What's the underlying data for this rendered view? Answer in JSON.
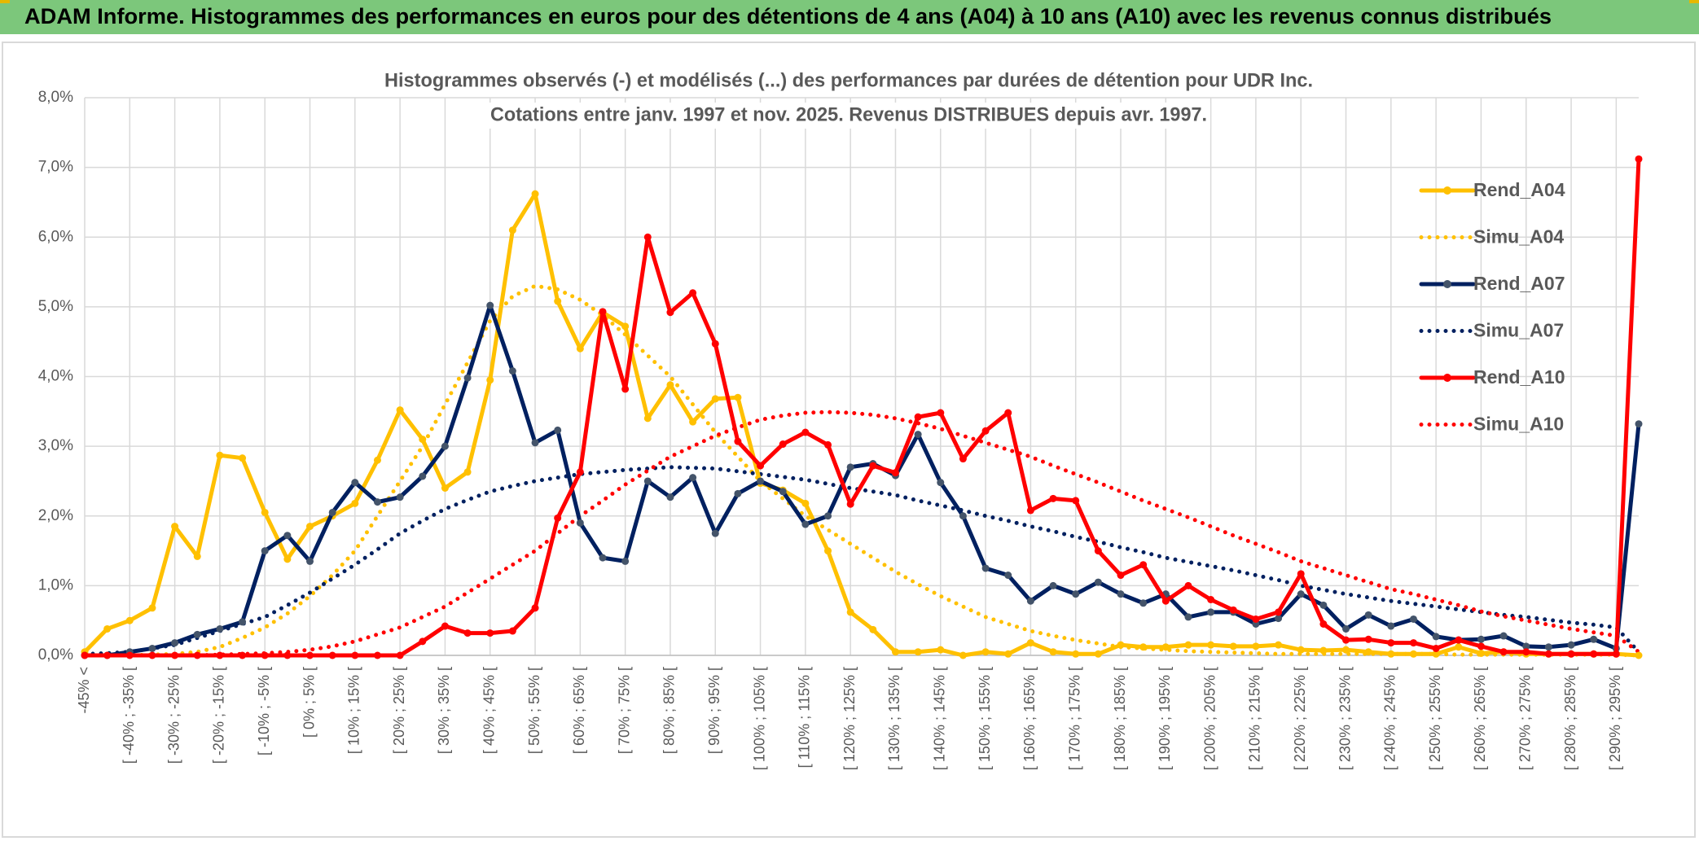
{
  "header": {
    "title": "ADAM Informe. Histogrammes des performances en euros pour des détentions de 4 ans (A04) à 10 ans (A10) avec les revenus connus distribués"
  },
  "chart_data": {
    "type": "line",
    "title": [
      "Histogrammes observés (-) et modélisés (...) des performances par durées de détention pour UDR Inc.",
      "Cotations entre janv. 1997 et nov. 2025. Revenus DISTRIBUES depuis avr. 1997."
    ],
    "categories": [
      "-45% <",
      null,
      "[ -40% ; -35% [",
      null,
      "[ -30% ; -25% [",
      null,
      "[ -20% ; -15% [",
      null,
      "[ -10% ; -5% [",
      null,
      "[ 0% ; 5% [",
      null,
      "[ 10% ; 15% [",
      null,
      "[ 20% ; 25% [",
      null,
      "[ 30% ; 35% [",
      null,
      "[ 40% ; 45% [",
      null,
      "[ 50% ; 55% [",
      null,
      "[ 60% ; 65% [",
      null,
      "[ 70% ; 75% [",
      null,
      "[ 80% ; 85% [",
      null,
      "[ 90% ; 95% [",
      null,
      "[ 100% ; 105% [",
      null,
      "[ 110% ; 115% [",
      null,
      "[ 120% ; 125% [",
      null,
      "[ 130% ; 135% [",
      null,
      "[ 140% ; 145% [",
      null,
      "[ 150% ; 155% [",
      null,
      "[ 160% ; 165% [",
      null,
      "[ 170% ; 175% [",
      null,
      "[ 180% ; 185% [",
      null,
      "[ 190% ; 195% [",
      null,
      "[ 200% ; 205% [",
      null,
      "[ 210% ; 215% [",
      null,
      "[ 220% ; 225% [",
      null,
      "[ 230% ; 235% [",
      null,
      "[ 240% ; 245% [",
      null,
      "[ 250% ; 255% [",
      null,
      "[ 260% ; 265% [",
      null,
      "[ 270% ; 275% [",
      null,
      "[ 280% ; 285% [",
      null,
      "[ 290% ; 295% [",
      null
    ],
    "series": [
      {
        "name": "Rend_A04",
        "color": "#ffc000",
        "style": "solid",
        "markers": true,
        "values": [
          0.05,
          0.38,
          0.5,
          0.68,
          1.85,
          1.42,
          2.87,
          2.83,
          2.05,
          1.38,
          1.85,
          2.0,
          2.18,
          2.8,
          3.52,
          3.1,
          2.4,
          2.63,
          3.95,
          6.1,
          6.62,
          5.08,
          4.4,
          4.92,
          4.72,
          3.4,
          3.88,
          3.35,
          3.68,
          3.7,
          2.47,
          2.37,
          2.18,
          1.5,
          0.62,
          0.37,
          0.05,
          0.05,
          0.08,
          0.0,
          0.05,
          0.02,
          0.18,
          0.05,
          0.02,
          0.02,
          0.15,
          0.12,
          0.12,
          0.15,
          0.15,
          0.13,
          0.13,
          0.15,
          0.08,
          0.07,
          0.08,
          0.05,
          0.02,
          0.02,
          0.02,
          0.12,
          0.03,
          0.05,
          0.02,
          0.02,
          0.02,
          0.02,
          0.02,
          0.0
        ]
      },
      {
        "name": "Simu_A04",
        "color": "#ffc000",
        "style": "dotted",
        "markers": false,
        "values": [
          0.0,
          0.0,
          0.0,
          0.01,
          0.02,
          0.05,
          0.12,
          0.25,
          0.4,
          0.6,
          0.85,
          1.15,
          1.5,
          2.0,
          2.5,
          3.0,
          3.6,
          4.2,
          4.8,
          5.15,
          5.3,
          5.25,
          5.1,
          4.88,
          4.6,
          4.3,
          4.0,
          3.6,
          3.2,
          2.85,
          2.5,
          2.25,
          2.0,
          1.8,
          1.6,
          1.4,
          1.2,
          1.02,
          0.85,
          0.7,
          0.55,
          0.45,
          0.35,
          0.28,
          0.22,
          0.17,
          0.12,
          0.1,
          0.08,
          0.06,
          0.05,
          0.04,
          0.03,
          0.02,
          0.02,
          0.02,
          0.02,
          0.02,
          0.02,
          0.02,
          0.02,
          0.01,
          0.01,
          0.01,
          0.01,
          0.01,
          0.01,
          0.01,
          0.01,
          0.0
        ]
      },
      {
        "name": "Rend_A07",
        "color": "#002060",
        "marker_color": "#44546a",
        "style": "solid",
        "markers": true,
        "values": [
          0.0,
          0.0,
          0.05,
          0.1,
          0.18,
          0.3,
          0.38,
          0.48,
          1.5,
          1.72,
          1.35,
          2.05,
          2.48,
          2.2,
          2.27,
          2.57,
          3.0,
          3.98,
          5.02,
          4.08,
          3.05,
          3.23,
          1.9,
          1.4,
          1.35,
          2.5,
          2.27,
          2.55,
          1.75,
          2.32,
          2.5,
          2.35,
          1.88,
          2.0,
          2.7,
          2.75,
          2.58,
          3.17,
          2.48,
          2.0,
          1.25,
          1.15,
          0.78,
          1.0,
          0.88,
          1.05,
          0.88,
          0.75,
          0.88,
          0.55,
          0.62,
          0.62,
          0.45,
          0.53,
          0.88,
          0.72,
          0.38,
          0.58,
          0.42,
          0.52,
          0.27,
          0.22,
          0.23,
          0.28,
          0.13,
          0.12,
          0.15,
          0.23,
          0.1,
          3.32
        ]
      },
      {
        "name": "Simu_A07",
        "color": "#002060",
        "style": "dotted",
        "markers": false,
        "values": [
          0.02,
          0.03,
          0.05,
          0.1,
          0.15,
          0.25,
          0.35,
          0.45,
          0.55,
          0.72,
          0.9,
          1.1,
          1.3,
          1.52,
          1.75,
          1.93,
          2.1,
          2.23,
          2.35,
          2.43,
          2.5,
          2.55,
          2.6,
          2.63,
          2.66,
          2.68,
          2.7,
          2.69,
          2.68,
          2.64,
          2.6,
          2.56,
          2.52,
          2.46,
          2.4,
          2.35,
          2.3,
          2.22,
          2.15,
          2.08,
          2.0,
          1.93,
          1.85,
          1.78,
          1.7,
          1.63,
          1.55,
          1.48,
          1.4,
          1.34,
          1.28,
          1.22,
          1.15,
          1.08,
          1.0,
          0.94,
          0.88,
          0.83,
          0.78,
          0.74,
          0.7,
          0.66,
          0.62,
          0.58,
          0.55,
          0.51,
          0.47,
          0.44,
          0.4,
          0.05
        ]
      },
      {
        "name": "Rend_A10",
        "color": "#ff0000",
        "style": "solid",
        "markers": true,
        "values": [
          0,
          0,
          0,
          0,
          0,
          0,
          0,
          0,
          0,
          0,
          0,
          0,
          0,
          0,
          0,
          0.2,
          0.42,
          0.32,
          0.32,
          0.35,
          0.68,
          1.97,
          2.63,
          4.93,
          3.82,
          6.0,
          4.92,
          5.2,
          4.47,
          3.07,
          2.72,
          3.03,
          3.2,
          3.02,
          2.17,
          2.72,
          2.62,
          3.42,
          3.48,
          2.82,
          3.22,
          3.48,
          2.08,
          2.25,
          2.22,
          1.5,
          1.15,
          1.3,
          0.78,
          1.0,
          0.8,
          0.65,
          0.52,
          0.62,
          1.17,
          0.45,
          0.22,
          0.23,
          0.18,
          0.18,
          0.1,
          0.22,
          0.13,
          0.05,
          0.05,
          0.02,
          0.02,
          0.02,
          0.02,
          7.12
        ]
      },
      {
        "name": "Simu_A10",
        "color": "#ff0000",
        "style": "dotted",
        "markers": false,
        "values": [
          0,
          0,
          0,
          0,
          0,
          0,
          0.01,
          0.02,
          0.03,
          0.05,
          0.08,
          0.13,
          0.2,
          0.3,
          0.4,
          0.55,
          0.7,
          0.9,
          1.1,
          1.3,
          1.5,
          1.75,
          2.0,
          2.22,
          2.45,
          2.65,
          2.85,
          3.0,
          3.15,
          3.27,
          3.38,
          3.44,
          3.48,
          3.49,
          3.48,
          3.45,
          3.4,
          3.33,
          3.25,
          3.15,
          3.05,
          2.95,
          2.85,
          2.72,
          2.6,
          2.48,
          2.35,
          2.22,
          2.1,
          1.98,
          1.85,
          1.72,
          1.6,
          1.48,
          1.35,
          1.25,
          1.15,
          1.05,
          0.95,
          0.88,
          0.8,
          0.72,
          0.63,
          0.56,
          0.5,
          0.44,
          0.38,
          0.33,
          0.28,
          0.05
        ]
      }
    ],
    "ylim": [
      0,
      8
    ],
    "yticks": [
      {
        "value": 0,
        "label": "0,0%"
      },
      {
        "value": 1,
        "label": "1,0%"
      },
      {
        "value": 2,
        "label": "2,0%"
      },
      {
        "value": 3,
        "label": "3,0%"
      },
      {
        "value": 4,
        "label": "4,0%"
      },
      {
        "value": 5,
        "label": "5,0%"
      },
      {
        "value": 6,
        "label": "6,0%"
      },
      {
        "value": 7,
        "label": "7,0%"
      },
      {
        "value": 8,
        "label": "8,0%"
      }
    ],
    "grid": true,
    "legend": "right"
  }
}
